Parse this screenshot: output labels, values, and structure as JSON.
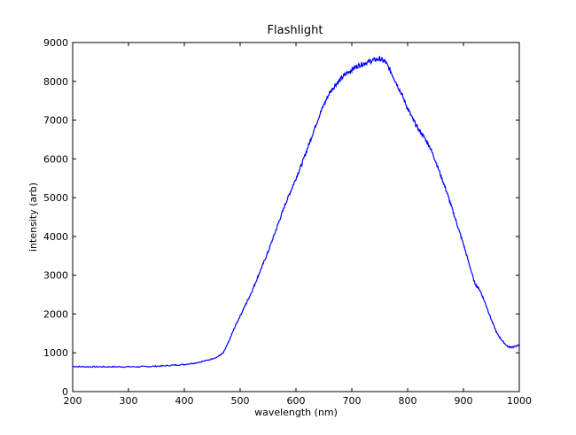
{
  "chart_data": {
    "type": "line",
    "title": "Flashlight",
    "xlabel": "wavelength (nm)",
    "ylabel": "intensity (arb)",
    "xlim": [
      200,
      1000
    ],
    "ylim": [
      0,
      9000
    ],
    "xticks": [
      200,
      300,
      400,
      500,
      600,
      700,
      800,
      900,
      1000
    ],
    "yticks": [
      0,
      1000,
      2000,
      3000,
      4000,
      5000,
      6000,
      7000,
      8000,
      9000
    ],
    "grid": false,
    "line_color": "#0000ff",
    "series": [
      {
        "x": [
          200,
          220,
          240,
          260,
          280,
          300,
          320,
          340,
          360,
          380,
          400,
          420,
          440,
          460,
          470,
          480,
          490,
          500,
          510,
          520,
          530,
          540,
          550,
          560,
          570,
          580,
          590,
          600,
          610,
          620,
          630,
          640,
          650,
          660,
          670,
          680,
          690,
          700,
          710,
          720,
          730,
          740,
          750,
          760,
          770,
          780,
          790,
          800,
          810,
          820,
          830,
          840,
          850,
          860,
          870,
          880,
          890,
          900,
          910,
          920,
          930,
          940,
          950,
          960,
          970,
          980,
          990,
          1000
        ],
        "y": [
          650,
          640,
          640,
          640,
          640,
          640,
          640,
          650,
          660,
          680,
          700,
          740,
          800,
          900,
          1000,
          1300,
          1650,
          1950,
          2250,
          2550,
          2900,
          3250,
          3600,
          4000,
          4400,
          4800,
          5150,
          5500,
          5850,
          6250,
          6650,
          7050,
          7400,
          7700,
          7900,
          8050,
          8200,
          8300,
          8400,
          8450,
          8500,
          8550,
          8580,
          8500,
          8250,
          7950,
          7650,
          7300,
          7000,
          6750,
          6550,
          6300,
          5950,
          5550,
          5150,
          4700,
          4250,
          3800,
          3300,
          2800,
          2600,
          2250,
          1850,
          1500,
          1300,
          1150,
          1150,
          1200
        ]
      }
    ]
  }
}
